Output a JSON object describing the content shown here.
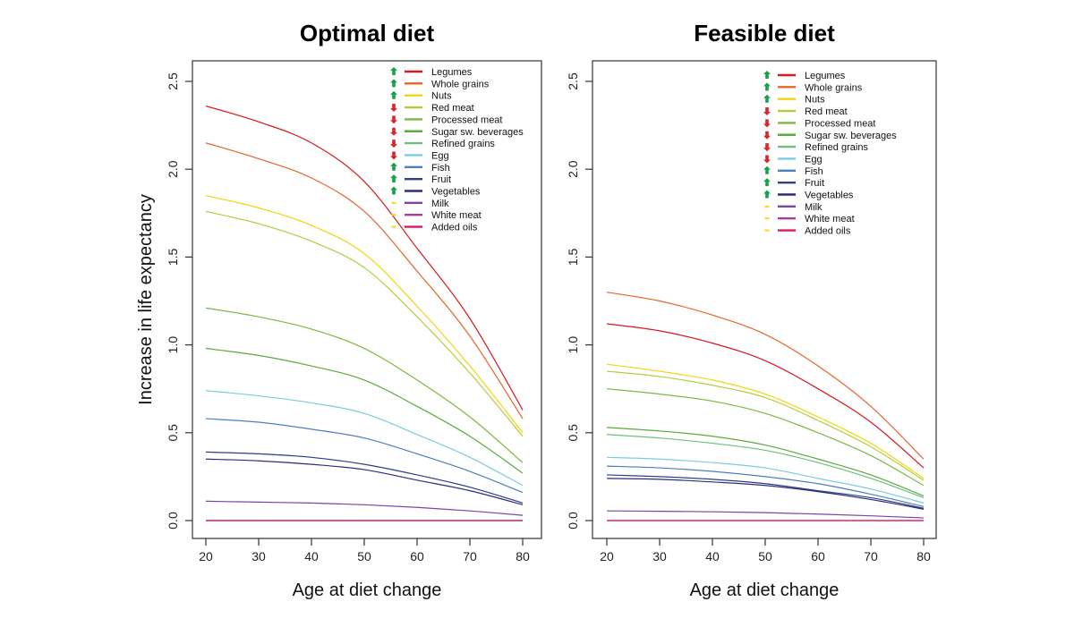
{
  "chart_data": [
    {
      "type": "line",
      "title": "Optimal diet",
      "xlabel": "Age at diet change",
      "ylabel": "Increase in life expectancy",
      "xlim": [
        18,
        83
      ],
      "ylim": [
        -0.1,
        2.6
      ],
      "xticks": [
        20,
        30,
        40,
        50,
        60,
        70,
        80
      ],
      "yticks": [
        0.0,
        0.5,
        1.0,
        1.5,
        2.0,
        2.5
      ],
      "grid": false,
      "legend_placement": "top-right",
      "x": [
        20,
        30,
        40,
        50,
        60,
        70,
        80
      ],
      "series": [
        {
          "name": "Legumes",
          "color": "#d7191c",
          "direction": "up",
          "values": [
            2.36,
            2.27,
            2.15,
            1.93,
            1.55,
            1.15,
            0.63
          ]
        },
        {
          "name": "Whole grains",
          "color": "#e8642a",
          "direction": "up",
          "values": [
            2.15,
            2.06,
            1.95,
            1.76,
            1.42,
            1.05,
            0.58
          ]
        },
        {
          "name": "Nuts",
          "color": "#f2d50c",
          "direction": "up",
          "values": [
            1.85,
            1.78,
            1.68,
            1.52,
            1.22,
            0.88,
            0.5
          ]
        },
        {
          "name": "Red meat",
          "color": "#b5cc3a",
          "direction": "down",
          "values": [
            1.76,
            1.69,
            1.59,
            1.44,
            1.16,
            0.84,
            0.48
          ]
        },
        {
          "name": "Processed meat",
          "color": "#7cba3f",
          "direction": "down",
          "values": [
            1.21,
            1.16,
            1.09,
            0.98,
            0.8,
            0.59,
            0.33
          ]
        },
        {
          "name": "Sugar  sw. beverages",
          "color": "#5aaa3c",
          "direction": "down",
          "values": [
            0.98,
            0.94,
            0.88,
            0.8,
            0.65,
            0.48,
            0.27
          ]
        },
        {
          "name": "Refined grains",
          "color": "#6cc07a",
          "direction": "down",
          "values": [
            0,
            0,
            0,
            0,
            0,
            0,
            0
          ]
        },
        {
          "name": "Egg",
          "color": "#7ccbe0",
          "direction": "down",
          "values": [
            0.74,
            0.71,
            0.67,
            0.61,
            0.49,
            0.36,
            0.2
          ]
        },
        {
          "name": "Fish",
          "color": "#4a7fbf",
          "direction": "up",
          "values": [
            0.58,
            0.56,
            0.52,
            0.47,
            0.38,
            0.28,
            0.16
          ]
        },
        {
          "name": "Fruit",
          "color": "#2c3e8c",
          "direction": "up",
          "values": [
            0.39,
            0.38,
            0.36,
            0.32,
            0.26,
            0.19,
            0.1
          ]
        },
        {
          "name": "Vegetables",
          "color": "#2a2f78",
          "direction": "up",
          "values": [
            0.35,
            0.34,
            0.32,
            0.29,
            0.23,
            0.17,
            0.09
          ]
        },
        {
          "name": "Milk",
          "color": "#7a45a0",
          "direction": "neutral",
          "values": [
            0.11,
            0.105,
            0.1,
            0.09,
            0.075,
            0.055,
            0.03
          ]
        },
        {
          "name": "White meat",
          "color": "#b03a9a",
          "direction": "neutral",
          "values": [
            0,
            0,
            0,
            0,
            0,
            0,
            0
          ]
        },
        {
          "name": "Added oils",
          "color": "#e0185a",
          "direction": "neutral",
          "values": [
            0,
            0,
            0,
            0,
            0,
            0,
            0
          ]
        }
      ]
    },
    {
      "type": "line",
      "title": "Feasible diet",
      "xlabel": "Age at diet change",
      "ylabel": "",
      "xlim": [
        18,
        83
      ],
      "ylim": [
        -0.1,
        2.6
      ],
      "xticks": [
        20,
        30,
        40,
        50,
        60,
        70,
        80
      ],
      "yticks": [
        0.0,
        0.5,
        1.0,
        1.5,
        2.0,
        2.5
      ],
      "grid": false,
      "legend_placement": "top-right",
      "x": [
        20,
        30,
        40,
        50,
        60,
        70,
        80
      ],
      "series": [
        {
          "name": "Legumes",
          "color": "#d7191c",
          "direction": "up",
          "values": [
            1.12,
            1.08,
            1.01,
            0.91,
            0.75,
            0.56,
            0.3
          ]
        },
        {
          "name": "Whole grains",
          "color": "#e8642a",
          "direction": "up",
          "values": [
            1.3,
            1.25,
            1.17,
            1.06,
            0.88,
            0.65,
            0.35
          ]
        },
        {
          "name": "Nuts",
          "color": "#f2d50c",
          "direction": "up",
          "values": [
            0.89,
            0.85,
            0.8,
            0.72,
            0.59,
            0.44,
            0.24
          ]
        },
        {
          "name": "Red meat",
          "color": "#b5cc3a",
          "direction": "down",
          "values": [
            0.85,
            0.82,
            0.77,
            0.7,
            0.57,
            0.42,
            0.23
          ]
        },
        {
          "name": "Processed meat",
          "color": "#7cba3f",
          "direction": "down",
          "values": [
            0.75,
            0.72,
            0.68,
            0.61,
            0.5,
            0.37,
            0.2
          ]
        },
        {
          "name": "Sugar  sw. beverages",
          "color": "#5aaa3c",
          "direction": "down",
          "values": [
            0.53,
            0.51,
            0.48,
            0.43,
            0.35,
            0.26,
            0.14
          ]
        },
        {
          "name": "Refined grains",
          "color": "#6cc07a",
          "direction": "down",
          "values": [
            0.49,
            0.47,
            0.44,
            0.4,
            0.33,
            0.24,
            0.13
          ]
        },
        {
          "name": "Egg",
          "color": "#7ccbe0",
          "direction": "down",
          "values": [
            0.36,
            0.35,
            0.33,
            0.3,
            0.24,
            0.18,
            0.1
          ]
        },
        {
          "name": "Fish",
          "color": "#4a7fbf",
          "direction": "up",
          "values": [
            0.31,
            0.3,
            0.28,
            0.25,
            0.21,
            0.15,
            0.08
          ]
        },
        {
          "name": "Fruit",
          "color": "#2c3e8c",
          "direction": "up",
          "values": [
            0.26,
            0.25,
            0.235,
            0.21,
            0.17,
            0.13,
            0.07
          ]
        },
        {
          "name": "Vegetables",
          "color": "#2a2f78",
          "direction": "up",
          "values": [
            0.24,
            0.235,
            0.22,
            0.2,
            0.165,
            0.12,
            0.065
          ]
        },
        {
          "name": "Milk",
          "color": "#7a45a0",
          "direction": "neutral",
          "values": [
            0.055,
            0.053,
            0.05,
            0.045,
            0.037,
            0.027,
            0.015
          ]
        },
        {
          "name": "White meat",
          "color": "#b03a9a",
          "direction": "neutral",
          "values": [
            0,
            0,
            0,
            0,
            0,
            0,
            0
          ]
        },
        {
          "name": "Added oils",
          "color": "#e0185a",
          "direction": "neutral",
          "values": [
            0,
            0,
            0,
            0,
            0,
            0,
            0
          ]
        }
      ]
    }
  ],
  "direction_colors": {
    "up": "#17a04a",
    "down": "#d9262b",
    "neutral": "#f5d90a"
  }
}
